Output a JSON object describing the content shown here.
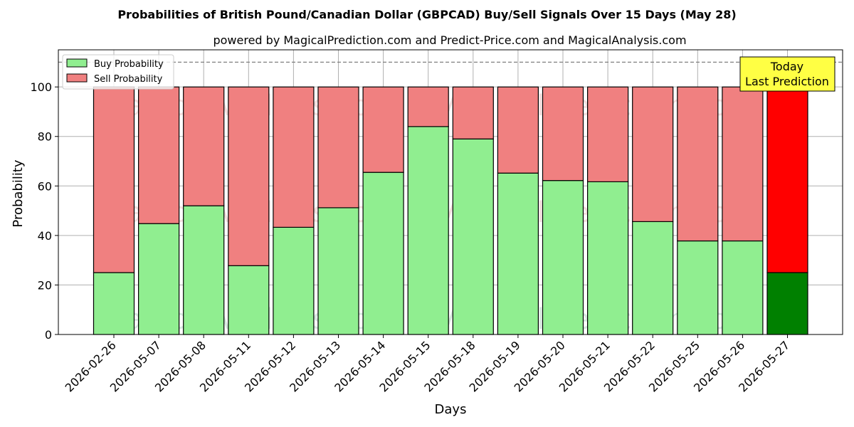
{
  "chart_data": {
    "type": "bar",
    "stacked": true,
    "title": "Probabilities of British Pound/Canadian Dollar (GBPCAD) Buy/Sell Signals Over 15 Days (May 28)",
    "subtitle": "powered by MagicalPrediction.com and Predict-Price.com and MagicalAnalysis.com",
    "xlabel": "Days",
    "ylabel": "Probability",
    "ylim": [
      0,
      115
    ],
    "yticks": [
      0,
      20,
      40,
      60,
      80,
      100
    ],
    "reference_line": 110,
    "grid": true,
    "legend_position": "top-left",
    "categories": [
      "2026-02-26",
      "2026-05-07",
      "2026-05-08",
      "2026-05-11",
      "2026-05-12",
      "2026-05-13",
      "2026-05-14",
      "2026-05-15",
      "2026-05-18",
      "2026-05-19",
      "2026-05-20",
      "2026-05-21",
      "2026-05-22",
      "2026-05-25",
      "2026-05-26",
      "2026-05-27"
    ],
    "series": [
      {
        "name": "Buy Probability",
        "color": "#90ee90",
        "highlight_color": "#008000",
        "values": [
          25,
          44.8,
          52,
          27.8,
          43.3,
          51.2,
          65.5,
          84,
          79,
          65.2,
          62.2,
          61.7,
          45.6,
          37.8,
          37.8,
          25
        ]
      },
      {
        "name": "Sell Probability",
        "color": "#f08080",
        "highlight_color": "#ff0000",
        "values": [
          75,
          55.2,
          48,
          72.2,
          56.7,
          48.8,
          34.5,
          16,
          21,
          34.8,
          37.8,
          38.3,
          54.4,
          62.2,
          62.2,
          75
        ]
      }
    ],
    "highlight_index": 15,
    "annotation": {
      "line1": "Today",
      "line2": "Last Prediction",
      "background": "#ffff44"
    },
    "watermarks": [
      "MagicalAnalysis.com",
      "MagicalPrediction.com"
    ]
  }
}
